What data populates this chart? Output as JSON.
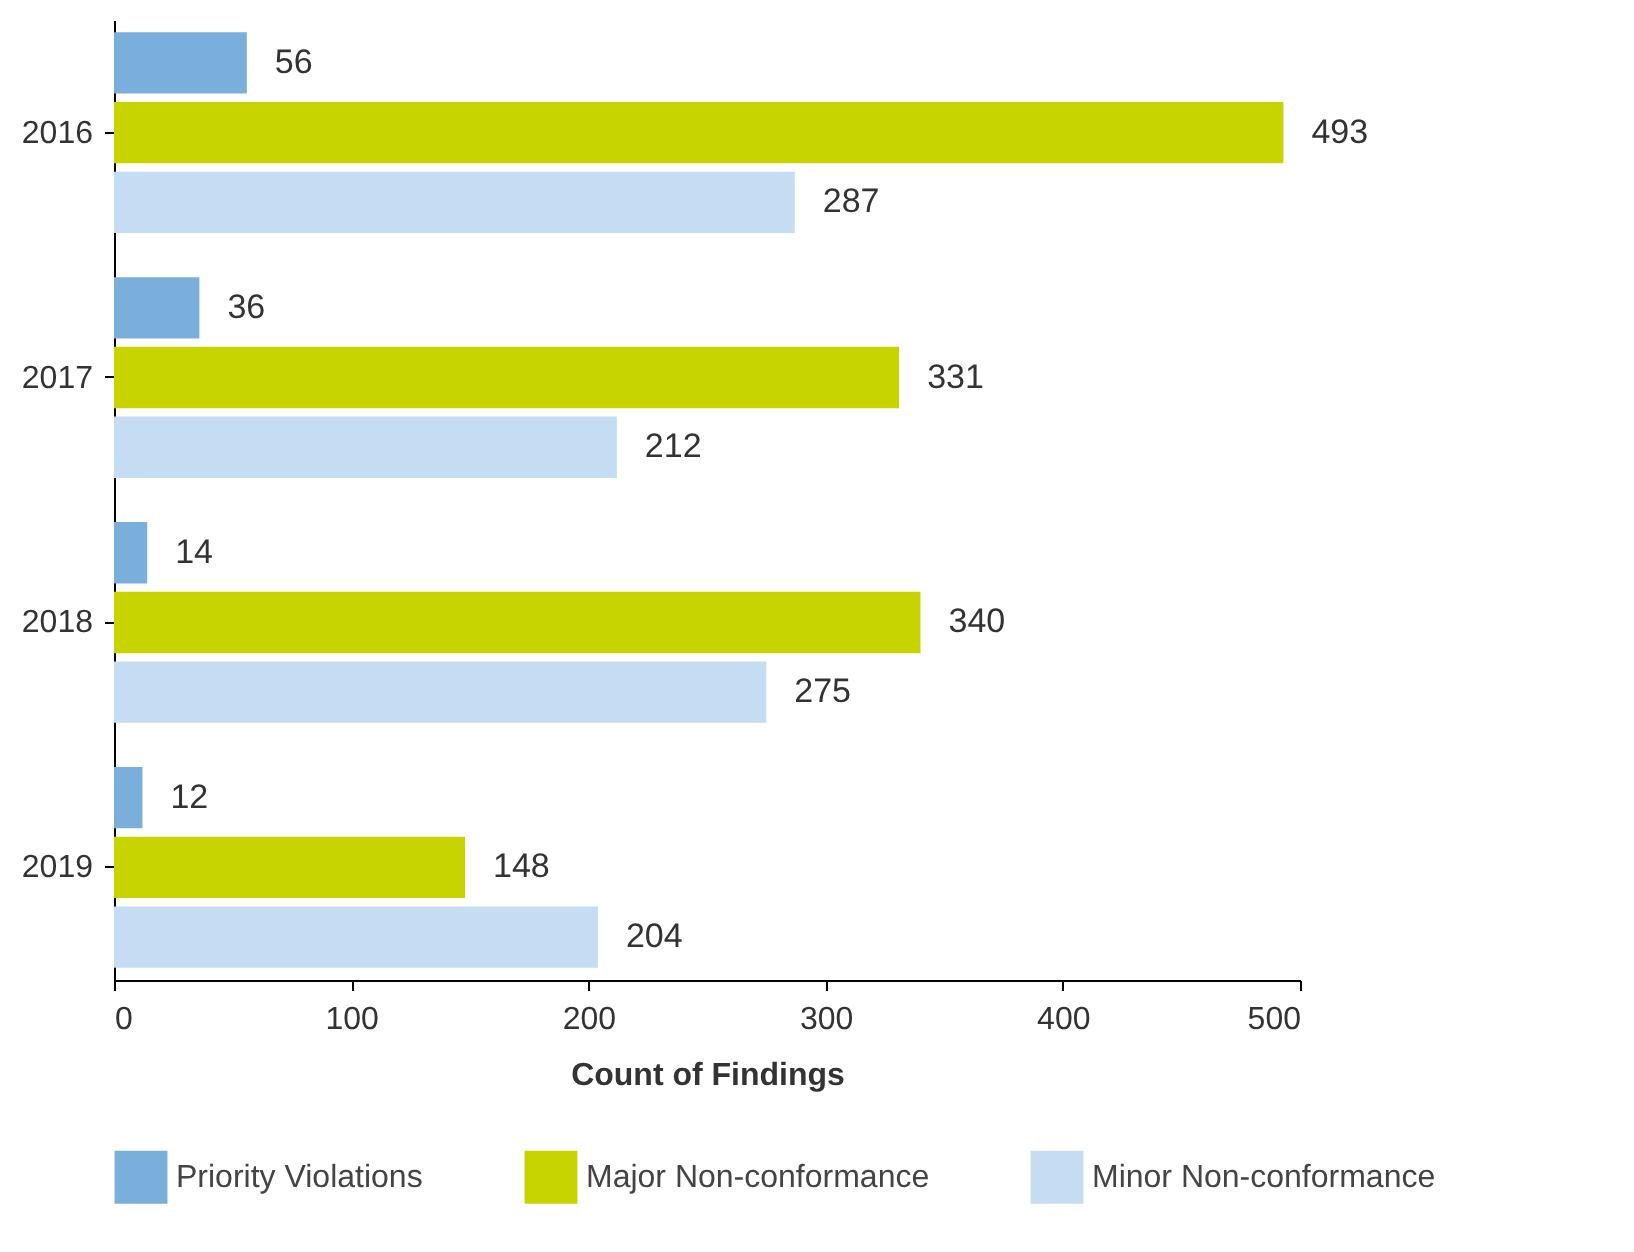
{
  "chart_data": {
    "type": "bar",
    "orientation": "horizontal",
    "xlabel": "Count of Findings",
    "categories": [
      "2016",
      "2017",
      "2018",
      "2019"
    ],
    "series": [
      {
        "name": "Priority Violations",
        "color": "#7aafdb",
        "values": [
          56,
          36,
          14,
          12
        ]
      },
      {
        "name": "Major Non-conformance",
        "color": "#c8d400",
        "values": [
          493,
          331,
          340,
          148
        ]
      },
      {
        "name": "Minor Non-conformance",
        "color": "#c5ddf2",
        "values": [
          287,
          212,
          275,
          204
        ]
      }
    ],
    "xlim": [
      0,
      500
    ],
    "xticks": [
      0,
      100,
      200,
      300,
      400,
      500
    ],
    "data_labels": true,
    "grid": false,
    "legend": "bottom"
  }
}
